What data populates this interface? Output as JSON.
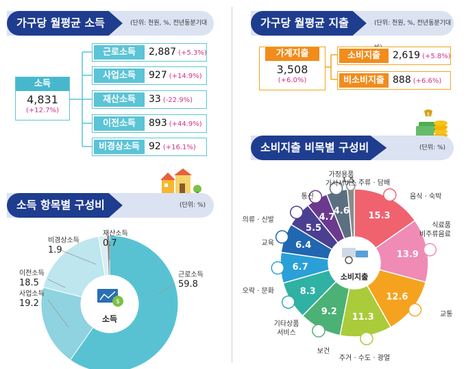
{
  "income_banner": {
    "title": "가구당 월평균 소득",
    "unit": "(단위: 천원, %, 전년동분기대비)"
  },
  "income_total": {
    "label": "소득",
    "value": "4,831",
    "change": "(+12.7%)"
  },
  "income_items": [
    {
      "label": "근로소득",
      "value": "2,887",
      "change": "(+5.3%)"
    },
    {
      "label": "사업소득",
      "value": "927",
      "change": "(+14.9%)"
    },
    {
      "label": "재산소득",
      "value": "33",
      "change": "(-22.9%)"
    },
    {
      "label": "이전소득",
      "value": "893",
      "change": "(+44.9%)"
    },
    {
      "label": "비경상소득",
      "value": "92",
      "change": "(+16.1%)"
    }
  ],
  "spend_banner": {
    "title": "가구당 월평균 지출",
    "unit": "(단위: 천원, %, 전년동분기대비)"
  },
  "spend_total": {
    "label": "가계지출",
    "value": "3,508",
    "change": "(+6.0%)"
  },
  "spend_items": [
    {
      "label": "소비지출",
      "value": "2,619",
      "change": "(+5.8%)"
    },
    {
      "label": "비소비지출",
      "value": "888",
      "change": "(+6.6%)"
    }
  ],
  "income_comp_banner": {
    "title": "소득 항목별 구성비",
    "unit": "(단위: %)"
  },
  "consumption_banner": {
    "title": "소비지출 비목별 구성비",
    "unit": "(단위: %)"
  },
  "chart_data": [
    {
      "type": "pie",
      "center_label": "소득",
      "categories": [
        "근로소득",
        "사업소득",
        "이전소득",
        "비경상소득",
        "재산소득"
      ],
      "values": [
        59.8,
        19.2,
        18.5,
        1.9,
        0.7
      ],
      "colors": [
        "#58c2d3",
        "#8fd3e0",
        "#bde6ee",
        "#d9eef2",
        "#8a8a8a"
      ]
    },
    {
      "type": "pie",
      "center_label": "소비지출",
      "categories": [
        "음식 · 숙박",
        "식료품 비주류음료",
        "교통",
        "주거 · 수도 · 광열",
        "보건",
        "기타상품 서비스",
        "오락 · 문화",
        "교육",
        "의류 · 신발",
        "통신",
        "가정용품 가사서비스",
        "주류 · 담배"
      ],
      "values": [
        15.3,
        13.9,
        12.6,
        11.3,
        9.2,
        8.3,
        6.7,
        6.4,
        5.5,
        4.7,
        4.6,
        1.5
      ],
      "colors": [
        "#f0626e",
        "#f08bb6",
        "#f5a31f",
        "#aacb3a",
        "#4bb174",
        "#2fb1a4",
        "#2a9fd8",
        "#2166b0",
        "#4b3f92",
        "#6b3a8e",
        "#5c6f80",
        "#8a8a8a"
      ]
    }
  ]
}
